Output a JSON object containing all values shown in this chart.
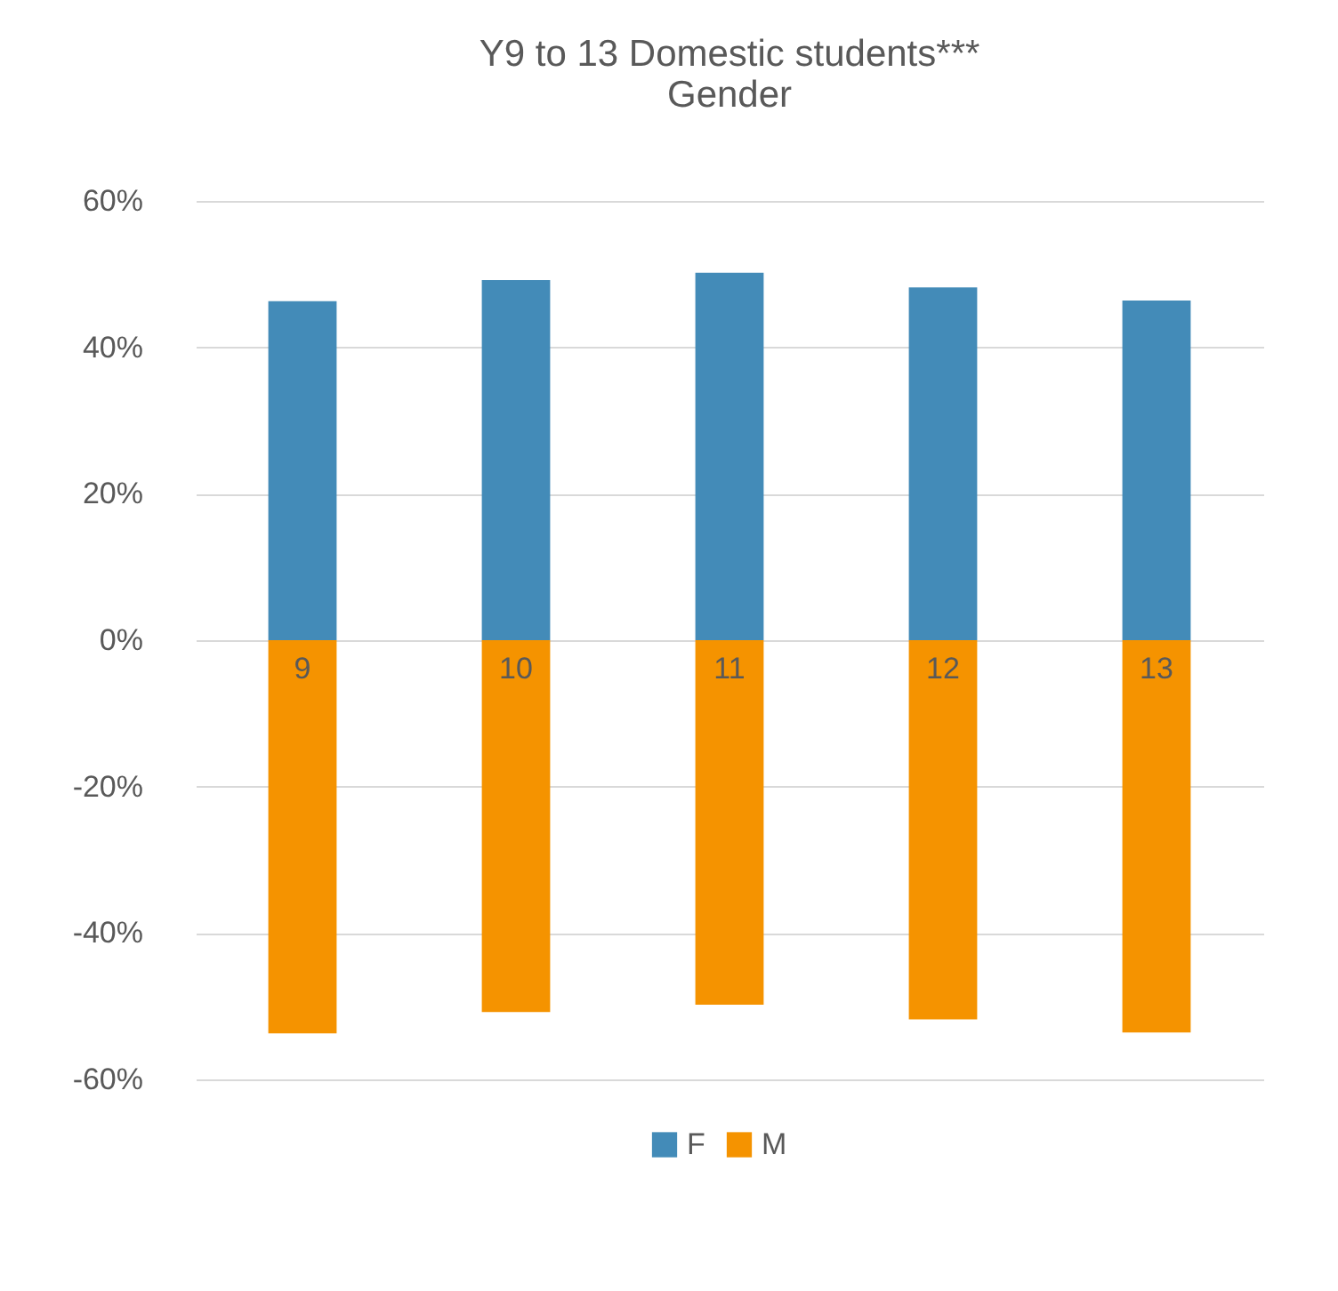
{
  "chart_data": {
    "type": "bar",
    "title": [
      "Y9 to 13 Domestic students***",
      "Gender"
    ],
    "categories": [
      "9",
      "10",
      "11",
      "12",
      "13"
    ],
    "stacked": true,
    "series": [
      {
        "name": "F",
        "color": "#438bb8",
        "values": [
          46.3,
          49.2,
          50.2,
          48.2,
          46.4
        ]
      },
      {
        "name": "M",
        "color": "#f59300",
        "values": [
          -53.7,
          -50.8,
          -49.8,
          -51.8,
          -53.6
        ]
      }
    ],
    "ylim": [
      -60,
      60
    ],
    "yticks": [
      {
        "value": 60,
        "label": "60%"
      },
      {
        "value": 40,
        "label": "40%"
      },
      {
        "value": 20,
        "label": "20%"
      },
      {
        "value": 0,
        "label": "0%"
      },
      {
        "value": -20,
        "label": "-20%"
      },
      {
        "value": -40,
        "label": "-40%"
      },
      {
        "value": -60,
        "label": "-60%"
      }
    ],
    "grid": "y",
    "legend": "bottom"
  }
}
